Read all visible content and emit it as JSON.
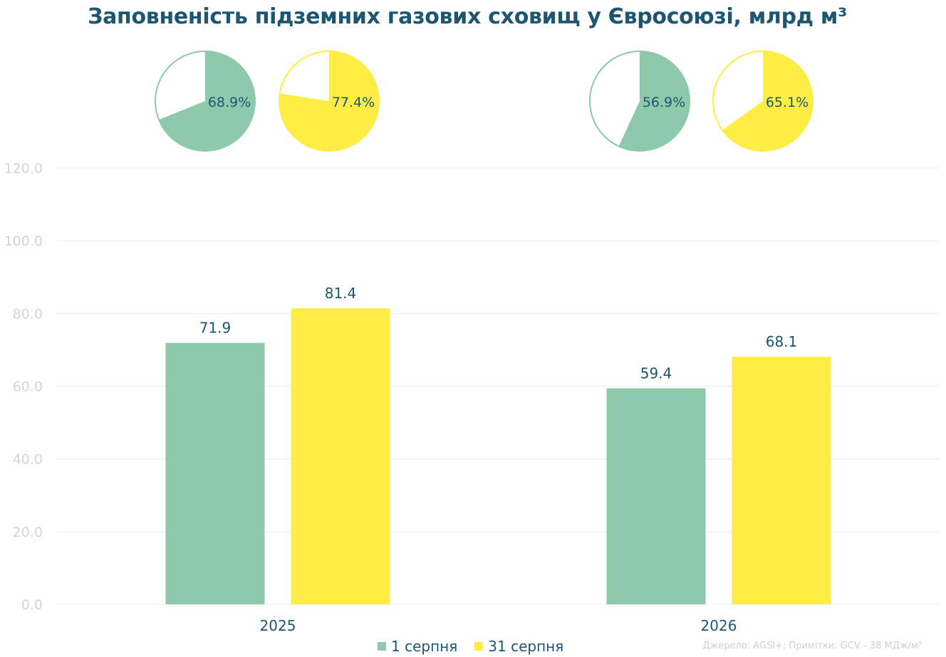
{
  "title": "Заповненість підземних газових сховищ у Євросоюзі, млрд м³",
  "source": "Джерело: AGSI+; Примітки: GCV - 38 МДж/м³",
  "colors": {
    "aug1": "#8fc9ab",
    "aug31": "#fded45",
    "text": "#1d5670",
    "grid": "#ececec"
  },
  "chart_data": {
    "type": "bar",
    "categories": [
      "2025",
      "2026"
    ],
    "series": [
      {
        "name": "1 серпня",
        "values": [
          71.9,
          59.4
        ],
        "labels": [
          "71.9",
          "59.4"
        ],
        "fill_pct": [
          68.9,
          56.9
        ],
        "fill_labels": [
          "68.9%",
          "56.9%"
        ]
      },
      {
        "name": "31 серпня",
        "values": [
          81.4,
          68.1
        ],
        "labels": [
          "81.4",
          "68.1"
        ],
        "fill_pct": [
          77.4,
          65.1
        ],
        "fill_labels": [
          "77.4%",
          "65.1%"
        ]
      }
    ],
    "yticks": [
      "0.0",
      "20.0",
      "40.0",
      "60.0",
      "80.0",
      "100.0",
      "120.0"
    ],
    "ylim": [
      0,
      120
    ],
    "grid": true,
    "legend": "bottom-center"
  }
}
